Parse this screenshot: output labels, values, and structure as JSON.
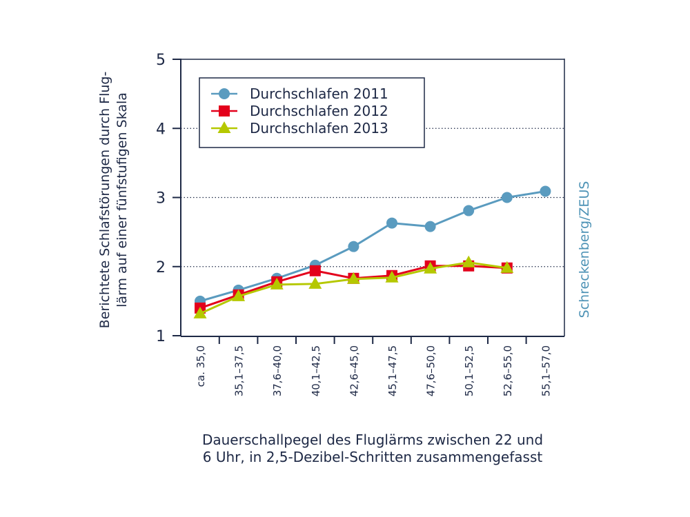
{
  "chart_data": {
    "type": "line",
    "title": "",
    "xlabel": [
      "Dauerschallpegel des Fluglärms zwischen 22 und",
      "6 Uhr, in 2,5-Dezibel-Schritten zusammengefasst"
    ],
    "ylabel": [
      "Berichtete Schlafstörungen durch Flug-",
      "lärm auf einer fünfstufigen Skala"
    ],
    "source": "Schreckenberg/ZEUS",
    "categories": [
      "ca. 35,0",
      "35,1–37,5",
      "37,6–40,0",
      "40,1–42,5",
      "42,6–45,0",
      "45,1–47,5",
      "47,6–50,0",
      "50,1–52,5",
      "52,6–55,0",
      "55,1–57,0"
    ],
    "ylim": [
      1,
      5
    ],
    "yticks": [
      "1",
      "2",
      "3",
      "4",
      "5"
    ],
    "grid": "horizontal-dotted at 2, 3, 4",
    "legend_position": "top-left",
    "series": [
      {
        "name": "Durchschlafen 2011",
        "color": "#5a9bbf",
        "marker": "circle",
        "values": [
          1.5,
          1.66,
          1.83,
          2.02,
          2.29,
          2.63,
          2.58,
          2.81,
          3.0,
          3.09
        ]
      },
      {
        "name": "Durchschlafen 2012",
        "color": "#e3001b",
        "marker": "square",
        "values": [
          1.4,
          1.59,
          1.78,
          1.94,
          1.83,
          1.87,
          2.01,
          2.01,
          1.98,
          null
        ]
      },
      {
        "name": "Durchschlafen 2013",
        "color": "#b5c800",
        "marker": "triangle",
        "values": [
          1.32,
          1.57,
          1.74,
          1.75,
          1.82,
          1.84,
          1.97,
          2.06,
          1.98,
          null
        ]
      }
    ]
  }
}
